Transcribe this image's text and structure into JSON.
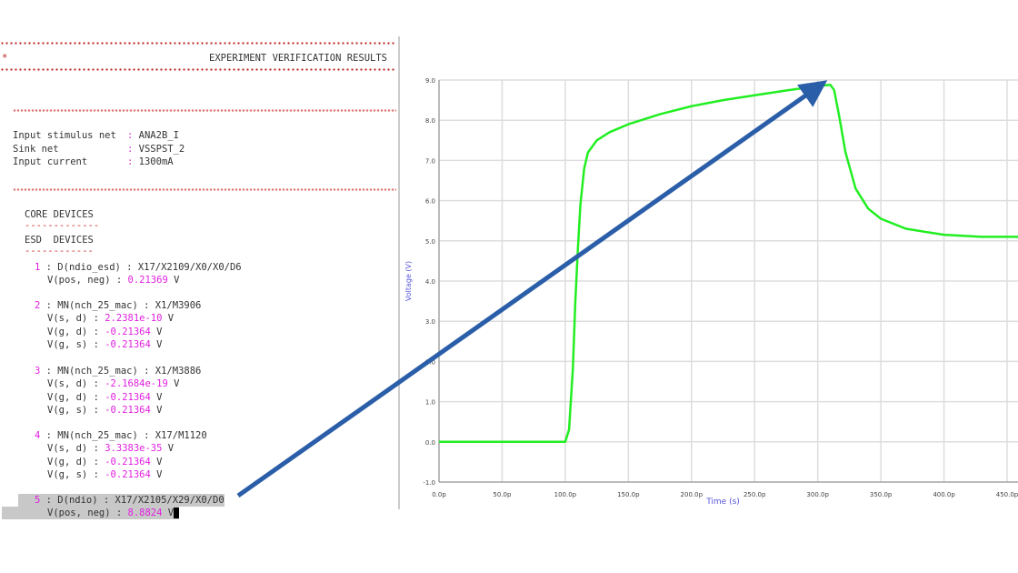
{
  "terminal": {
    "title": "EXPERIMENT VERIFICATION RESULTS",
    "params": [
      {
        "label": "Input stimulus net",
        "value": "ANA2B_I"
      },
      {
        "label": "Sink net",
        "value": "VSSPST_2"
      },
      {
        "label": "Input current",
        "value": "1300mA"
      }
    ],
    "core_header": "CORE DEVICES",
    "esd_header": "ESD  DEVICES",
    "devices": [
      {
        "index": "1",
        "type": "D(ndio_esd)",
        "path": "X17/X2109/X0/X0/D6",
        "values": [
          {
            "label": "V(pos, neg)",
            "value": "0.21369",
            "unit": "V"
          }
        ]
      },
      {
        "index": "2",
        "type": "MN(nch_25_mac)",
        "path": "X1/M3906",
        "values": [
          {
            "label": "V(s, d)",
            "value": "2.2381e-10",
            "unit": "V"
          },
          {
            "label": "V(g, d)",
            "value": "-0.21364",
            "unit": "V"
          },
          {
            "label": "V(g, s)",
            "value": "-0.21364",
            "unit": "V"
          }
        ]
      },
      {
        "index": "3",
        "type": "MN(nch_25_mac)",
        "path": "X1/M3886",
        "values": [
          {
            "label": "V(s, d)",
            "value": "-2.1684e-19",
            "unit": "V"
          },
          {
            "label": "V(g, d)",
            "value": "-0.21364",
            "unit": "V"
          },
          {
            "label": "V(g, s)",
            "value": "-0.21364",
            "unit": "V"
          }
        ]
      },
      {
        "index": "4",
        "type": "MN(nch_25_mac)",
        "path": "X17/M1120",
        "values": [
          {
            "label": "V(s, d)",
            "value": "3.3383e-35",
            "unit": "V"
          },
          {
            "label": "V(g, d)",
            "value": "-0.21364",
            "unit": "V"
          },
          {
            "label": "V(g, s)",
            "value": "-0.21364",
            "unit": "V"
          }
        ]
      },
      {
        "index": "5",
        "type": "D(ndio)",
        "path": "X17/X2105/X29/X0/D0",
        "selected": true,
        "values": [
          {
            "label": "V(pos, neg)",
            "value": "8.8824",
            "unit": "V"
          }
        ]
      }
    ]
  },
  "colors": {
    "trace": "#22ee22",
    "arrow": "#2b5ea8",
    "value": "#e020e0",
    "axis_label": "#5555dd"
  },
  "chart_data": {
    "type": "line",
    "xlabel": "Time (s)",
    "ylabel": "Voltage (V)",
    "xlim": [
      0,
      450
    ],
    "ylim": [
      -1,
      9
    ],
    "xticks": [
      "0.0p",
      "50.0p",
      "100.0p",
      "150.0p",
      "200.0p",
      "250.0p",
      "300.0p",
      "350.0p",
      "400.0p",
      "450.0p"
    ],
    "yticks": [
      "-1.0",
      "0.0",
      "1.0",
      "2.0",
      "3.0",
      "4.0",
      "5.0",
      "6.0",
      "7.0",
      "8.0",
      "9.0"
    ],
    "grid": true,
    "series": [
      {
        "x": [
          0,
          100,
          103,
          106,
          108,
          110,
          112,
          115,
          118,
          125,
          135,
          150,
          175,
          200,
          225,
          250,
          275,
          300,
          310,
          313,
          317,
          322,
          330,
          340,
          350,
          370,
          400,
          430,
          460
        ],
        "y": [
          0,
          0,
          0.3,
          1.8,
          3.5,
          4.8,
          5.9,
          6.8,
          7.2,
          7.5,
          7.7,
          7.9,
          8.15,
          8.35,
          8.5,
          8.62,
          8.74,
          8.85,
          8.88,
          8.75,
          8.1,
          7.2,
          6.3,
          5.8,
          5.55,
          5.3,
          5.15,
          5.1,
          5.1
        ]
      }
    ],
    "annotation": {
      "type": "arrow",
      "from": "device 5 V(pos, neg)",
      "to_x": 310,
      "to_y": 8.88
    }
  }
}
